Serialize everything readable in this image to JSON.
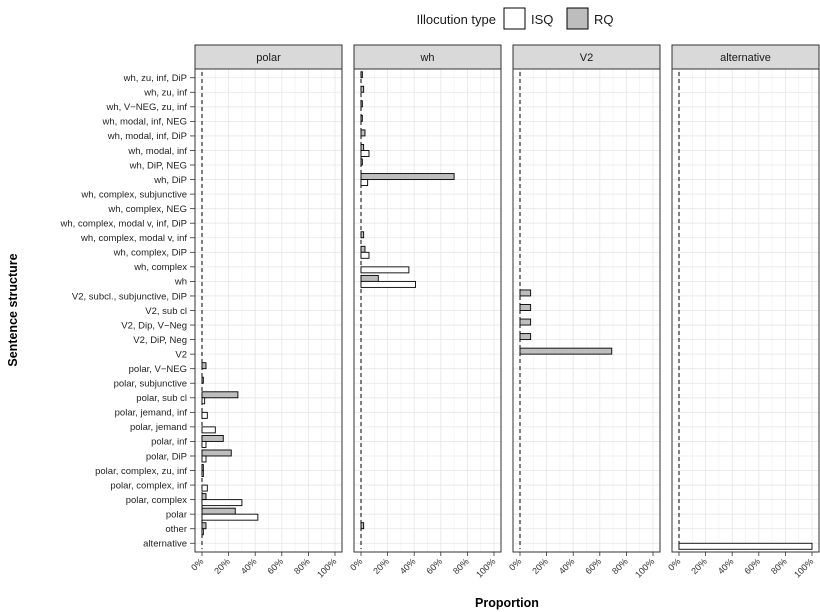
{
  "chart_data": {
    "type": "bar",
    "orientation": "horizontal",
    "xlabel": "Proportion",
    "ylabel": "Sentence structure",
    "xlim": [
      0,
      100
    ],
    "x_ticks": [
      "0%",
      "20%",
      "40%",
      "60%",
      "80%",
      "100%"
    ],
    "grid": true,
    "legend": {
      "title": "Illocution type",
      "position": "top",
      "entries": [
        {
          "name": "ISQ",
          "color": "#ffffff"
        },
        {
          "name": "RQ",
          "color": "#bdbdbd"
        }
      ]
    },
    "categories": [
      "wh, zu, inf, DiP",
      "wh, zu, inf",
      "wh, V−NEG, zu, inf",
      "wh, modal, inf, NEG",
      "wh, modal, inf, DiP",
      "wh, modal, inf",
      "wh, DiP, NEG",
      "wh, DiP",
      "wh, complex, subjunctive",
      "wh, complex, NEG",
      "wh, complex, modal v, inf,  DiP",
      "wh, complex, modal v, inf",
      "wh, complex, DiP",
      "wh, complex",
      "wh",
      "V2, subcl., subjunctive, DiP",
      "V2, sub cl",
      "V2, Dip, V−Neg",
      "V2, DiP, Neg",
      "V2",
      "polar, V−NEG",
      "polar, subjunctive",
      "polar, sub cl",
      "polar, jemand, inf",
      "polar, jemand",
      "polar, inf",
      "polar, DiP",
      "polar, complex, zu, inf",
      "polar, complex, inf",
      "polar, complex",
      "polar",
      "other",
      "alternative"
    ],
    "panels": [
      {
        "title": "polar",
        "series": [
          {
            "name": "RQ",
            "values": [
              0,
              0,
              0,
              0,
              0,
              0,
              0,
              0,
              0,
              0,
              0,
              0,
              0,
              0,
              0,
              0,
              0,
              0,
              0,
              0,
              3,
              1,
              27,
              0,
              0,
              16,
              22,
              1,
              0,
              3,
              25,
              3,
              0
            ]
          },
          {
            "name": "ISQ",
            "values": [
              0,
              0,
              0,
              0,
              0,
              0,
              0,
              0,
              0,
              0,
              0,
              0,
              0,
              0,
              0,
              0,
              0,
              0,
              0,
              0,
              0,
              0,
              2,
              4,
              10,
              3,
              3,
              1,
              4,
              30,
              42,
              1,
              0
            ]
          }
        ]
      },
      {
        "title": "wh",
        "series": [
          {
            "name": "RQ",
            "values": [
              1,
              2,
              1,
              1,
              3,
              2,
              1,
              70,
              0,
              0,
              0,
              2,
              3,
              0,
              13,
              0,
              0,
              0,
              0,
              0,
              0,
              0,
              0,
              0,
              0,
              0,
              0,
              0,
              0,
              0,
              0,
              2,
              0
            ]
          },
          {
            "name": "ISQ",
            "values": [
              0,
              0,
              0,
              0,
              0,
              6,
              0,
              5,
              0,
              0,
              0,
              0,
              6,
              36,
              41,
              0,
              0,
              0,
              0,
              0,
              0,
              0,
              0,
              0,
              0,
              0,
              0,
              0,
              0,
              0,
              0,
              0,
              0
            ]
          }
        ]
      },
      {
        "title": "V2",
        "series": [
          {
            "name": "RQ",
            "values": [
              0,
              0,
              0,
              0,
              0,
              0,
              0,
              0,
              0,
              0,
              0,
              0,
              0,
              0,
              0,
              8,
              8,
              8,
              8,
              69,
              0,
              0,
              0,
              0,
              0,
              0,
              0,
              0,
              0,
              0,
              0,
              0,
              0
            ]
          },
          {
            "name": "ISQ",
            "values": [
              0,
              0,
              0,
              0,
              0,
              0,
              0,
              0,
              0,
              0,
              0,
              0,
              0,
              0,
              0,
              0,
              0,
              0,
              0,
              0,
              0,
              0,
              0,
              0,
              0,
              0,
              0,
              0,
              0,
              0,
              0,
              0,
              0
            ]
          }
        ]
      },
      {
        "title": "alternative",
        "series": [
          {
            "name": "RQ",
            "values": [
              0,
              0,
              0,
              0,
              0,
              0,
              0,
              0,
              0,
              0,
              0,
              0,
              0,
              0,
              0,
              0,
              0,
              0,
              0,
              0,
              0,
              0,
              0,
              0,
              0,
              0,
              0,
              0,
              0,
              0,
              0,
              0,
              0
            ]
          },
          {
            "name": "ISQ",
            "values": [
              0,
              0,
              0,
              0,
              0,
              0,
              0,
              0,
              0,
              0,
              0,
              0,
              0,
              0,
              0,
              0,
              0,
              0,
              0,
              0,
              0,
              0,
              0,
              0,
              0,
              0,
              0,
              0,
              0,
              0,
              0,
              0,
              100
            ]
          }
        ]
      }
    ]
  }
}
